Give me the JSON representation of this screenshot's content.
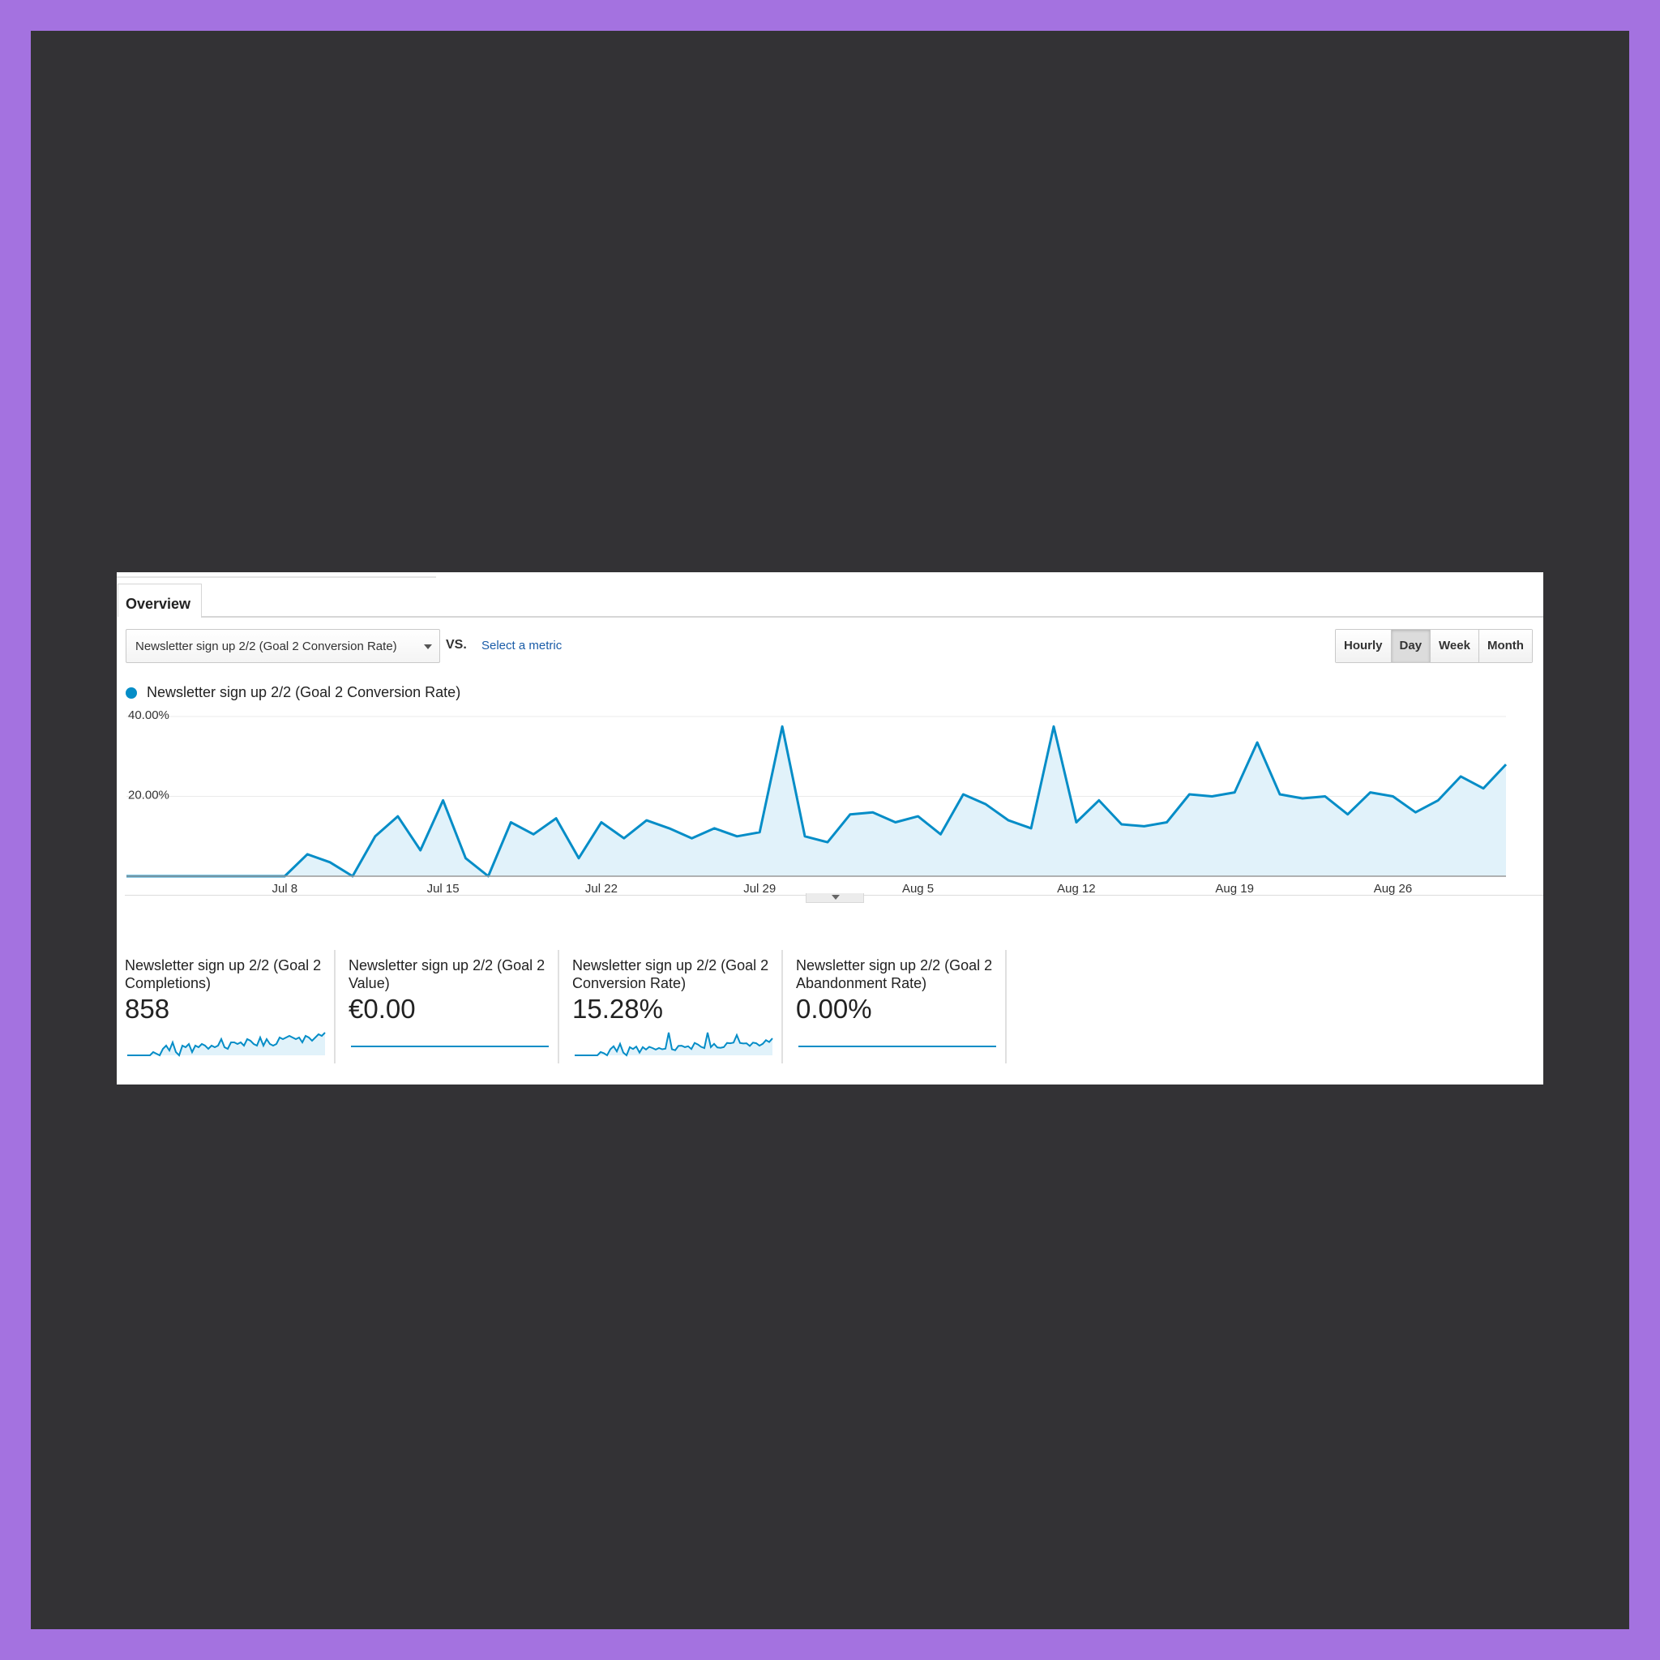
{
  "overview": {
    "tab_label": "Overview",
    "metric_select": "Newsletter sign up 2/2 (Goal 2 Conversion Rate)",
    "vs_label": "VS.",
    "select_metric_link": "Select a metric",
    "granularity": [
      "Hourly",
      "Day",
      "Week",
      "Month"
    ],
    "active_granularity": "Day"
  },
  "colors": {
    "line": "#058dc7",
    "fill": "#e1f2fa"
  },
  "chart_data": {
    "type": "area",
    "series": [
      {
        "name": "Newsletter sign up 2/2 (Goal 2 Conversion Rate)",
        "values": [
          0,
          0,
          0,
          0,
          0,
          0,
          0,
          0,
          5.5,
          3.5,
          0,
          10,
          15,
          6.5,
          19,
          4.5,
          0,
          13.5,
          10.5,
          14.5,
          4.5,
          13.5,
          9.5,
          14,
          12,
          9.5,
          12,
          10,
          11,
          37.5,
          10,
          8.5,
          15.5,
          16,
          13.5,
          15,
          10.5,
          20.5,
          18,
          14,
          12,
          37.5,
          13.5,
          19,
          13,
          12.5,
          13.5,
          20.5,
          20,
          21,
          33.5,
          20.5,
          19.5,
          20,
          15.5,
          21,
          20,
          16,
          19,
          25,
          22,
          28
        ]
      }
    ],
    "y_ticks": [
      "40.00%",
      "20.00%"
    ],
    "ylim": [
      0,
      40
    ],
    "x_ticks": [
      {
        "label": "Jul 8",
        "index": 7
      },
      {
        "label": "Jul 15",
        "index": 14
      },
      {
        "label": "Jul 22",
        "index": 21
      },
      {
        "label": "Jul 29",
        "index": 28
      },
      {
        "label": "Aug 5",
        "index": 35
      },
      {
        "label": "Aug 12",
        "index": 42
      },
      {
        "label": "Aug 19",
        "index": 49
      },
      {
        "label": "Aug 26",
        "index": 56
      }
    ],
    "legend": "top-left",
    "grid": true
  },
  "scorecards": [
    {
      "label_line1": "Newsletter sign up 2/2 (Goal 2",
      "label_line2": "Completions)",
      "value": "858",
      "sparkline": [
        0,
        0,
        0,
        0,
        0,
        0,
        0,
        0,
        1,
        0.5,
        0,
        2,
        3,
        1.5,
        4,
        1,
        0,
        3,
        2.5,
        3.5,
        1,
        3,
        2.5,
        3.5,
        3,
        2,
        3,
        2.5,
        3,
        5,
        2.5,
        2,
        4,
        4,
        3.5,
        4,
        3,
        5,
        4.5,
        3.5,
        3,
        5.5,
        3,
        5,
        3.5,
        3,
        3.5,
        5.5,
        5,
        5.5,
        6,
        5.5,
        5,
        5.5,
        4,
        6,
        5.5,
        4.5,
        5.5,
        6.5,
        6,
        7
      ]
    },
    {
      "label_line1": "Newsletter sign up 2/2 (Goal 2",
      "label_line2": "Value)",
      "value": "€0.00",
      "sparkline": [
        0,
        0,
        0,
        0,
        0,
        0,
        0,
        0,
        0,
        0
      ]
    },
    {
      "label_line1": "Newsletter sign up 2/2 (Goal 2",
      "label_line2": "Conversion Rate)",
      "value": "15.28%",
      "sparkline": [
        0,
        0,
        0,
        0,
        0,
        0,
        0,
        0,
        5.5,
        3.5,
        0,
        10,
        15,
        6.5,
        19,
        4.5,
        0,
        13.5,
        10.5,
        14.5,
        4.5,
        13.5,
        9.5,
        14,
        12,
        9.5,
        12,
        10,
        11,
        37.5,
        10,
        8.5,
        15.5,
        16,
        13.5,
        15,
        10.5,
        20.5,
        18,
        14,
        12,
        37.5,
        13.5,
        19,
        13,
        12.5,
        13.5,
        20.5,
        20,
        21,
        33.5,
        20.5,
        19.5,
        20,
        15.5,
        21,
        20,
        16,
        19,
        25,
        22,
        28
      ]
    },
    {
      "label_line1": "Newsletter sign up 2/2 (Goal 2",
      "label_line2": "Abandonment Rate)",
      "value": "0.00%",
      "sparkline": [
        0,
        0,
        0,
        0,
        0,
        0,
        0,
        0,
        0,
        0
      ]
    }
  ]
}
